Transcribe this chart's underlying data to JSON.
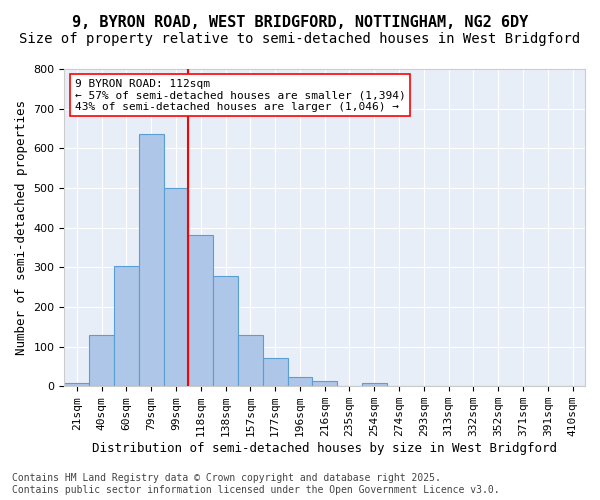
{
  "title_line1": "9, BYRON ROAD, WEST BRIDGFORD, NOTTINGHAM, NG2 6DY",
  "title_line2": "Size of property relative to semi-detached houses in West Bridgford",
  "xlabel": "Distribution of semi-detached houses by size in West Bridgford",
  "ylabel": "Number of semi-detached properties",
  "footnote": "Contains HM Land Registry data © Crown copyright and database right 2025.\nContains public sector information licensed under the Open Government Licence v3.0.",
  "bin_labels": [
    "21sqm",
    "40sqm",
    "60sqm",
    "79sqm",
    "99sqm",
    "118sqm",
    "138sqm",
    "157sqm",
    "177sqm",
    "196sqm",
    "216sqm",
    "235sqm",
    "254sqm",
    "274sqm",
    "293sqm",
    "313sqm",
    "332sqm",
    "352sqm",
    "371sqm",
    "391sqm",
    "410sqm"
  ],
  "bar_values": [
    8,
    128,
    302,
    635,
    500,
    382,
    278,
    130,
    70,
    24,
    12,
    0,
    8,
    0,
    0,
    0,
    0,
    0,
    0,
    0,
    0
  ],
  "bar_color": "#aec6e8",
  "bar_edge_color": "#5a9fd4",
  "property_value": 112,
  "property_bin_index": 4,
  "vline_color": "red",
  "annotation_text": "9 BYRON ROAD: 112sqm\n← 57% of semi-detached houses are smaller (1,394)\n43% of semi-detached houses are larger (1,046) →",
  "annotation_box_color": "white",
  "annotation_box_edge": "red",
  "ylim": [
    0,
    800
  ],
  "yticks": [
    0,
    100,
    200,
    300,
    400,
    500,
    600,
    700,
    800
  ],
  "background_color": "#e8eef8",
  "grid_color": "white",
  "title_fontsize": 11,
  "subtitle_fontsize": 10,
  "axis_label_fontsize": 9,
  "tick_fontsize": 8,
  "annotation_fontsize": 8,
  "footnote_fontsize": 7
}
